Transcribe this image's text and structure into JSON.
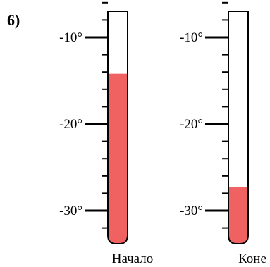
{
  "problem_label": "6)",
  "scale": {
    "min": -35,
    "max": -5,
    "ticks": [
      -10,
      -20,
      -30
    ],
    "tick_labels": [
      "-10°",
      "-20°",
      "-30°"
    ]
  },
  "thermometers": [
    {
      "label": "Начало",
      "value": -14.2
    },
    {
      "label": "Коне",
      "value": -27.3
    }
  ],
  "colors": {
    "liquid": "#f06262",
    "outline": "#000000"
  }
}
